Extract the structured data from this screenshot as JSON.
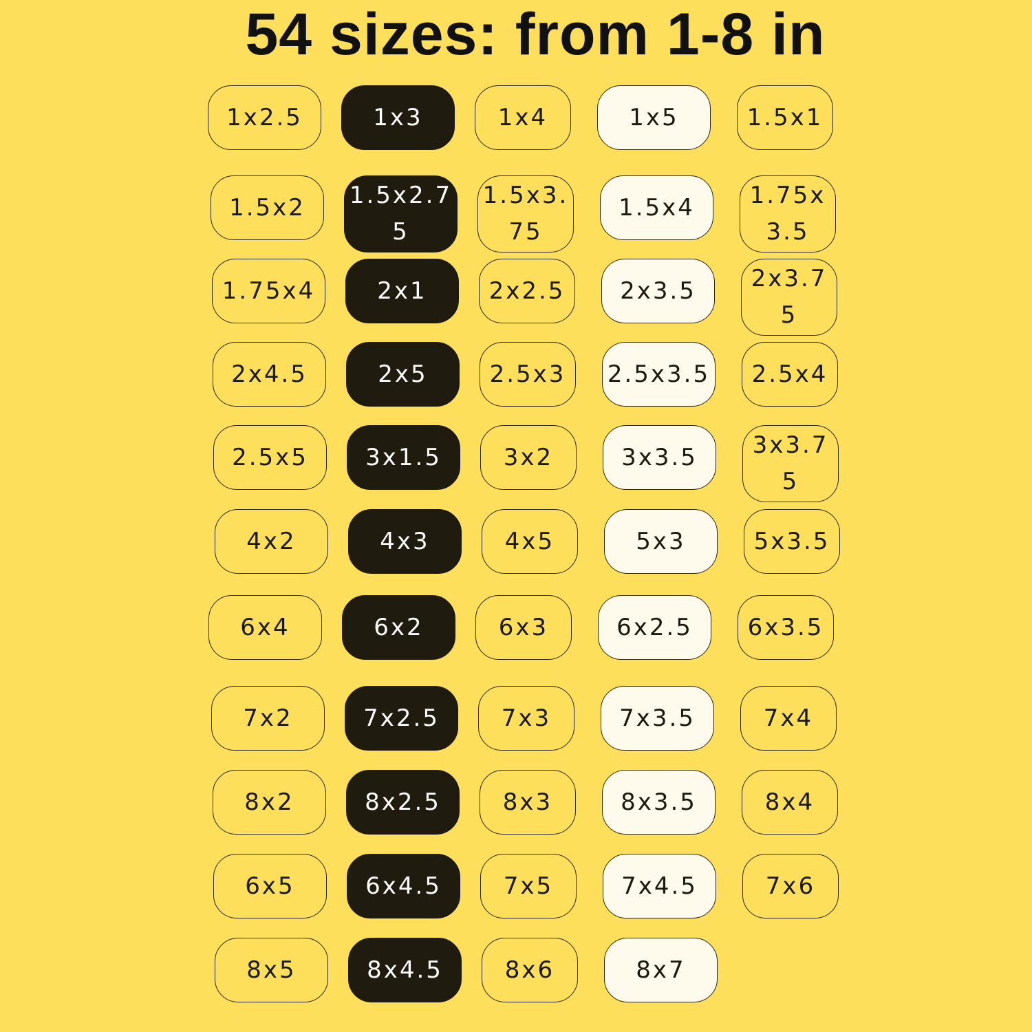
{
  "title": "54 sizes: from 1-8 in",
  "column_styles": [
    "outline",
    "dark",
    "outline",
    "light",
    "outline"
  ],
  "colors": {
    "background": "#fddf5c",
    "dark_chip": "#1f1b0e",
    "light_chip": "#fffbec"
  },
  "rows": [
    [
      "1x2.5",
      "1x3",
      "1x4",
      "1x5",
      "1.5x1"
    ],
    [
      "1.5x2",
      "1.5x2.75",
      "1.5x3.75",
      "1.5x4",
      "1.75x3.5"
    ],
    [
      "1.75x4",
      "2x1",
      "2x2.5",
      "2x3.5",
      "2x3.75"
    ],
    [
      "2x4.5",
      "2x5",
      "2.5x3",
      "2.5x3.5",
      "2.5x4"
    ],
    [
      "2.5x5",
      "3x1.5",
      "3x2",
      "3x3.5",
      "3x3.75"
    ],
    [
      "4x2",
      "4x3",
      "4x5",
      "5x3",
      "5x3.5"
    ],
    [
      "6x4",
      "6x2",
      "6x3",
      "6x2.5",
      "6x3.5"
    ],
    [
      "7x2",
      "7x2.5",
      "7x3",
      "7x3.5",
      "7x4"
    ],
    [
      "8x2",
      "8x2.5",
      "8x3",
      "8x3.5",
      "8x4"
    ],
    [
      "6x5",
      "6x4.5",
      "7x5",
      "7x4.5",
      "7x6"
    ],
    [
      "8x5",
      "8x4.5",
      "8x6",
      "8x7"
    ]
  ]
}
